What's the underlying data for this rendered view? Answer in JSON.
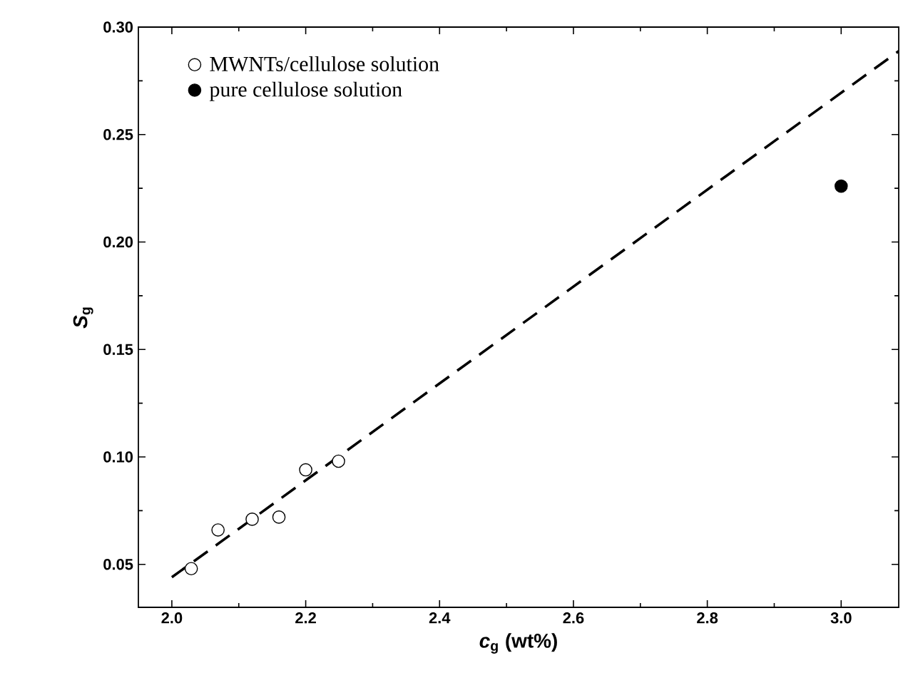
{
  "chart_data": {
    "type": "scatter",
    "xlabel": "*c*$_{g}$ (wt%)",
    "ylabel": "*S*$_{g}$",
    "xlim": [
      1.95,
      3.086
    ],
    "ylim": [
      0.03,
      0.3
    ],
    "xticks": [
      {
        "value": 2.0,
        "label": "2.0"
      },
      {
        "value": 2.2,
        "label": "2.2"
      },
      {
        "value": 2.4,
        "label": "2.4"
      },
      {
        "value": 2.6,
        "label": "2.6"
      },
      {
        "value": 2.8,
        "label": "2.8"
      },
      {
        "value": 3.0,
        "label": "3.0"
      }
    ],
    "yticks": [
      {
        "value": 0.05,
        "label": "0.05"
      },
      {
        "value": 0.1,
        "label": "0.10"
      },
      {
        "value": 0.15,
        "label": "0.15"
      },
      {
        "value": 0.2,
        "label": "0.20"
      },
      {
        "value": 0.25,
        "label": "0.25"
      },
      {
        "value": 0.3,
        "label": "0.30"
      }
    ],
    "grid": false,
    "legend": "top left",
    "series": [
      {
        "name": "MWNTs/cellulose solution",
        "color": "#ffffff",
        "marker": "circle",
        "x": [
          2.029,
          2.069,
          2.12,
          2.16,
          2.2,
          2.249
        ],
        "values": [
          0.048,
          0.066,
          0.071,
          0.072,
          0.094,
          0.098
        ]
      },
      {
        "name": "pure cellulose solution",
        "color": "#000000",
        "marker": "circle",
        "x": [
          3.0
        ],
        "values": [
          0.226
        ]
      },
      {
        "type": "line",
        "color": "#000000",
        "line_style": "dashed",
        "marker": "none",
        "x": [
          2.0,
          3.086
        ],
        "values": [
          0.044,
          0.2888
        ]
      }
    ]
  }
}
